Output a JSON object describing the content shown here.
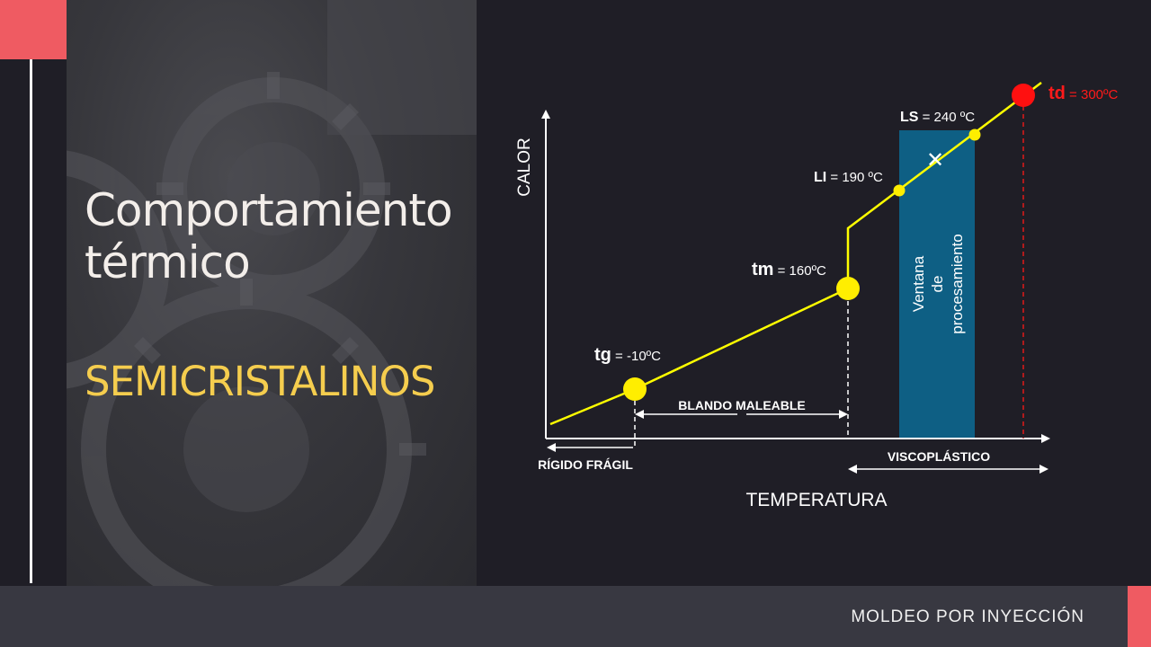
{
  "slide": {
    "title_line1": "Comportamiento",
    "title_line2": "térmico",
    "subtitle": "SEMICRISTALINOS",
    "footer": "MOLDEO POR INYECCIÓN"
  },
  "diagram": {
    "y_axis_label": "CALOR",
    "x_axis_label": "TEMPERATURA",
    "points": {
      "tg": {
        "name": "tg",
        "value": " = -10ºC"
      },
      "tm": {
        "name": "tm",
        "value": " = 160ºC"
      },
      "li": {
        "name": "LI",
        "value": " = 190 ºC"
      },
      "ls": {
        "name": "LS",
        "value": " = 240 ºC"
      },
      "td": {
        "name": "td",
        "value": " = 300ºC"
      }
    },
    "zones": {
      "rigido": "RÍGIDO FRÁGIL",
      "blando": "BLANDO MALEABLE",
      "visco": "VISCOPLÁSTICO"
    },
    "window_line1": "Ventana",
    "window_line2": "de",
    "window_line3": "procesamiento",
    "marker": "✕",
    "colors": {
      "line": "#ffff00",
      "point": "#ffee00",
      "td_point": "#ff1010",
      "td_label": "#ff1a1a",
      "window": "#0e5f84",
      "axes": "#ffffff",
      "accent": "#ef5b62",
      "subtitle": "#f5cd4e"
    }
  }
}
